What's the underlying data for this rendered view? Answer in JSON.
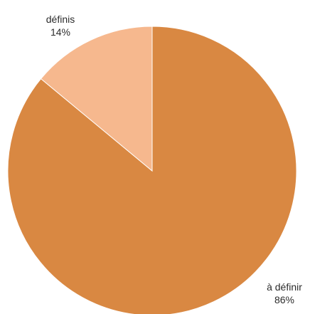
{
  "chart_data": {
    "type": "pie",
    "title": "",
    "slices": [
      {
        "label": "à définir",
        "value": 86,
        "display": "86%",
        "color": "#D98842"
      },
      {
        "label": "définis",
        "value": 14,
        "display": "14%",
        "color": "#F6B88E"
      }
    ],
    "start": "12 o'clock",
    "direction": "clockwise",
    "legend": "none",
    "labels": "category name and percentage beside each slice"
  }
}
